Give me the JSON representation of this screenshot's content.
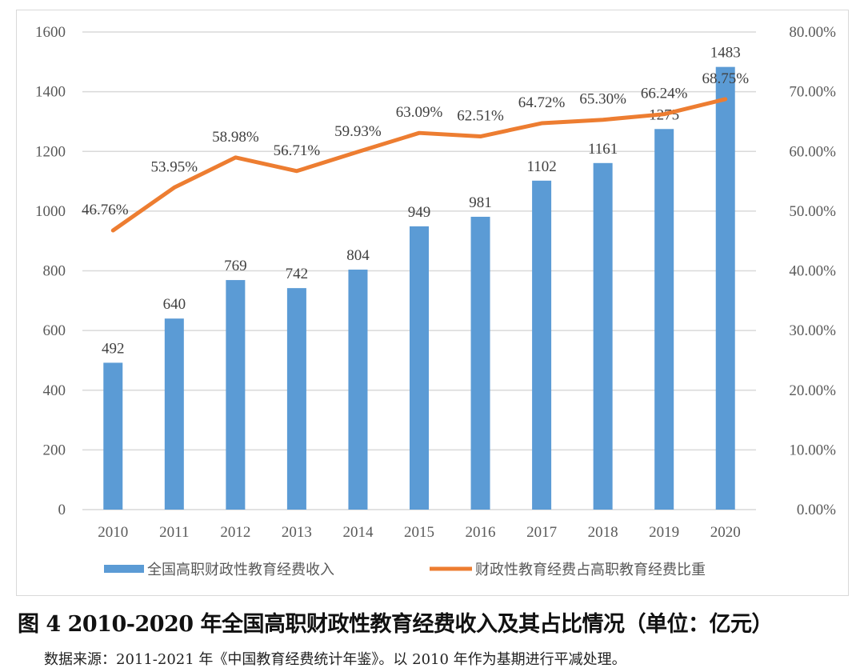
{
  "chart_data": {
    "type": "bar+line",
    "categories": [
      "2010",
      "2011",
      "2012",
      "2013",
      "2014",
      "2015",
      "2016",
      "2017",
      "2018",
      "2019",
      "2020"
    ],
    "series": [
      {
        "name": "全国高职财政性教育经费收入",
        "type": "bar",
        "axis": "left",
        "color": "#5b9bd5",
        "values": [
          492,
          640,
          769,
          742,
          804,
          949,
          981,
          1102,
          1161,
          1275,
          1483
        ],
        "labels": [
          "492",
          "640",
          "769",
          "742",
          "804",
          "949",
          "981",
          "1102",
          "1161",
          "1275",
          "1483"
        ]
      },
      {
        "name": "财政性教育经费占高职教育经费比重",
        "type": "line",
        "axis": "right",
        "color": "#ed7d31",
        "values": [
          46.76,
          53.95,
          58.98,
          56.71,
          59.93,
          63.09,
          62.51,
          64.72,
          65.3,
          66.24,
          68.75
        ],
        "labels": [
          "46.76%",
          "53.95%",
          "58.98%",
          "56.71%",
          "59.93%",
          "63.09%",
          "62.51%",
          "64.72%",
          "65.30%",
          "66.24%",
          "68.75%"
        ]
      }
    ],
    "y_left": {
      "range": [
        0,
        1600
      ],
      "ticks": [
        "0",
        "200",
        "400",
        "600",
        "800",
        "1000",
        "1200",
        "1400",
        "1600"
      ]
    },
    "y_right": {
      "range": [
        0,
        80
      ],
      "ticks": [
        "0.00%",
        "10.00%",
        "20.00%",
        "30.00%",
        "40.00%",
        "50.00%",
        "60.00%",
        "70.00%",
        "80.00%"
      ]
    },
    "grid": true,
    "legend_position": "bottom"
  },
  "caption": "图 4 2010-2020 年全国高职财政性教育经费收入及其占比情况（单位：亿元）",
  "source": "数据来源：2011-2021 年《中国教育经费统计年鉴》。以 2010 年作为基期进行平减处理。"
}
